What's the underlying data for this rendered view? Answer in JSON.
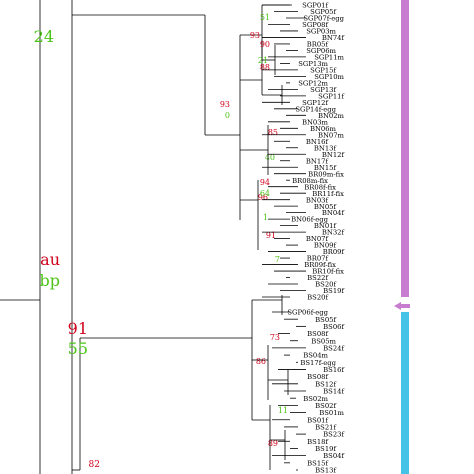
{
  "legend": {
    "au_label": "au",
    "bp_label": "bp",
    "au_color": "#d0021b",
    "bp_color": "#4cc417"
  },
  "bar_colors": {
    "upper_clade": "#c77cd0",
    "lower_clade": "#45c3e6",
    "arrow": "#c77cd0"
  },
  "support": [
    {
      "id": "s24",
      "bp": "24"
    },
    {
      "id": "s93",
      "au": "93",
      "bp": "0"
    },
    {
      "id": "s91",
      "au": "91",
      "bp": "55"
    },
    {
      "id": "s82",
      "au": "82"
    },
    {
      "id": "n93b",
      "au": "93"
    },
    {
      "id": "n90",
      "au": "90"
    },
    {
      "id": "n88",
      "au": "88"
    },
    {
      "id": "n85",
      "au": "85"
    },
    {
      "id": "n96",
      "au": "96"
    },
    {
      "id": "n94",
      "au": "94"
    },
    {
      "id": "n91b",
      "au": "91",
      "bp": "4"
    },
    {
      "id": "n73",
      "au": "73"
    },
    {
      "id": "n86",
      "au": "86"
    },
    {
      "id": "n89",
      "au": "89"
    },
    {
      "id": "n40",
      "bp": "40"
    },
    {
      "id": "n64",
      "bp": "64"
    },
    {
      "id": "n11",
      "bp": "11"
    },
    {
      "id": "n7",
      "bp": "7"
    },
    {
      "id": "n1",
      "bp": "1"
    },
    {
      "id": "n51",
      "bp": "51"
    },
    {
      "id": "n21",
      "bp": "21"
    }
  ],
  "taxa_upper": [
    "SGP01f",
    "SGP05f",
    "SGP07f-egg",
    "SGP08f",
    "SGP03m",
    "BN74f",
    "BR05f",
    "SGP06m",
    "SGP11m",
    "SGP13m",
    "SGP15f",
    "SGP10m",
    "SGP12m",
    "SGP13f",
    "SGP11f",
    "SGP12f",
    "SGP14f-egg",
    "BN02m",
    "BN03m",
    "BN06m",
    "BN07m",
    "BN16f",
    "BN13f",
    "BN12f",
    "BN17f",
    "BN15f",
    "BR09m-fix",
    "BR08m-fix",
    "BR08f-fix",
    "BR11f-fix",
    "BN03f",
    "BN05f",
    "BN04f",
    "BN06f-egg",
    "BN01f",
    "BN32f",
    "BN07f",
    "BN09f",
    "BR09f",
    "BR07f",
    "BR09f-fix",
    "BR10f-fix",
    "BS22f",
    "BS20f",
    "BS19f",
    "BS20f"
  ],
  "taxa_lower": [
    "SGP06f-egg",
    "BS05f",
    "BS06f",
    "BS08f",
    "BS05m",
    "BS24f",
    "BS04m",
    "BS17f-egg",
    "BS16f",
    "BS08f",
    "BS12f",
    "BS14f",
    "BS02m",
    "BS02f",
    "BS01m",
    "BS01f",
    "BS21f",
    "BS23f",
    "BS18f",
    "BS19f",
    "BS04f",
    "BS15f",
    "BS13f"
  ]
}
